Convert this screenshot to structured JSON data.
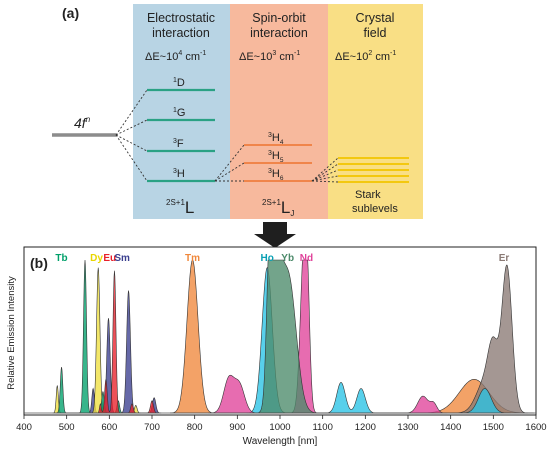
{
  "panel_a": {
    "label": "(a)",
    "config_base": "4f",
    "config_sup": "n",
    "columns": [
      {
        "title_line1": "Electrostatic",
        "title_line2": "interaction",
        "energy_base": "ΔE~10",
        "energy_exp": "4",
        "energy_unit": "cm",
        "energy_unit_exp": "-1",
        "color": "#b8d4e4"
      },
      {
        "title_line1": "Spin-orbit",
        "title_line2": "interaction",
        "energy_base": "ΔE~10",
        "energy_exp": "3",
        "energy_unit": "cm",
        "energy_unit_exp": "-1",
        "color": "#f7b99d"
      },
      {
        "title_line1": "Crystal",
        "title_line2": "field",
        "energy_base": "ΔE~10",
        "energy_exp": "2",
        "energy_unit": "cm",
        "energy_unit_exp": "-1",
        "color": "#f9df85"
      }
    ],
    "terms": [
      {
        "sup": "1",
        "letter": "D"
      },
      {
        "sup": "1",
        "letter": "G"
      },
      {
        "sup": "3",
        "letter": "F"
      },
      {
        "sup": "3",
        "letter": "H"
      }
    ],
    "term_symbol": {
      "sup": "2S+1",
      "letter": "L"
    },
    "levels": [
      {
        "sup": "3",
        "letter": "H",
        "sub": "4"
      },
      {
        "sup": "3",
        "letter": "H",
        "sub": "5"
      },
      {
        "sup": "3",
        "letter": "H",
        "sub": "6"
      }
    ],
    "level_symbol": {
      "sup": "2S+1",
      "letter": "L",
      "sub": "J"
    },
    "stark_line1": "Stark",
    "stark_line2": "sublevels",
    "colors": {
      "term_line": "#2aa184",
      "level_line": "#f0854a",
      "stark_line": "#f2c400",
      "base_line": "#8c8c8c"
    }
  },
  "panel_b": {
    "label": "(b)",
    "ylabel": "Relative Emission Intensity",
    "xlabel": "Wavelength [nm]",
    "element_labels": [
      {
        "name": "Tb",
        "color": "#00a06a",
        "x": 488
      },
      {
        "name": "Dy",
        "color": "#e8d600",
        "x": 570
      },
      {
        "name": "Eu",
        "color": "#e8202a",
        "x": 601
      },
      {
        "name": "Sm",
        "color": "#3b3f8f",
        "x": 630
      },
      {
        "name": "Tm",
        "color": "#f0883c",
        "x": 795
      },
      {
        "name": "Ho",
        "color": "#0aa0b4",
        "x": 970
      },
      {
        "name": "Yb",
        "color": "#4c8a6a",
        "x": 1018
      },
      {
        "name": "Nd",
        "color": "#e0429a",
        "x": 1062
      },
      {
        "name": "Er",
        "color": "#8a7a75",
        "x": 1525
      }
    ]
  },
  "chart_data": {
    "type": "area",
    "xlabel": "Wavelength [nm]",
    "ylabel": "Relative Emission Intensity",
    "xlim": [
      400,
      1600
    ],
    "ylim": [
      0,
      1
    ],
    "x_ticks": [
      400,
      500,
      600,
      700,
      800,
      900,
      1000,
      1100,
      1200,
      1300,
      1400,
      1500,
      1600
    ],
    "series": [
      {
        "name": "Tb",
        "color": "#00a06a",
        "peaks": [
          [
            488,
            0.3,
            3.0
          ],
          [
            543,
            1.0,
            3.5
          ],
          [
            585,
            0.14,
            3.0
          ],
          [
            621,
            0.08,
            3.0
          ]
        ]
      },
      {
        "name": "Dy",
        "color": "#f0e040",
        "peaks": [
          [
            478,
            0.18,
            2.5
          ],
          [
            574,
            0.95,
            4.0
          ],
          [
            662,
            0.05,
            3.0
          ]
        ]
      },
      {
        "name": "Eu",
        "color": "#e8202a",
        "peaks": [
          [
            579,
            0.06,
            2.0
          ],
          [
            592,
            0.22,
            3.0
          ],
          [
            612,
            0.93,
            3.5
          ],
          [
            653,
            0.06,
            3.0
          ],
          [
            700,
            0.08,
            3.5
          ]
        ]
      },
      {
        "name": "Sm",
        "color": "#3b3f8f",
        "peaks": [
          [
            562,
            0.16,
            3.0
          ],
          [
            598,
            0.62,
            4.0
          ],
          [
            645,
            0.8,
            4.5
          ],
          [
            705,
            0.1,
            4.0
          ]
        ]
      },
      {
        "name": "Tm",
        "color": "#f0883c",
        "peaks": [
          [
            795,
            1.0,
            13.0
          ],
          [
            1455,
            0.22,
            35.0
          ]
        ]
      },
      {
        "name": "Ho",
        "color": "#29c3e6",
        "peaks": [
          [
            970,
            0.95,
            12.0
          ],
          [
            1143,
            0.2,
            10.0
          ],
          [
            1190,
            0.16,
            10.0
          ],
          [
            1480,
            0.16,
            15.0
          ]
        ]
      },
      {
        "name": "Yb",
        "color": "#4c8a6a",
        "peaks": [
          [
            976,
            0.95,
            7.0
          ],
          [
            992,
            0.72,
            12.0
          ],
          [
            1020,
            0.88,
            18.0
          ]
        ]
      },
      {
        "name": "Nd",
        "color": "#e0429a",
        "peaks": [
          [
            880,
            0.22,
            12.0
          ],
          [
            905,
            0.18,
            12.0
          ],
          [
            1055,
            0.95,
            8.0
          ],
          [
            1064,
            0.6,
            6.0
          ],
          [
            1335,
            0.11,
            12.0
          ],
          [
            1360,
            0.06,
            8.0
          ]
        ]
      },
      {
        "name": "Er",
        "color": "#8a7a75",
        "peaks": [
          [
            1480,
            0.2,
            20.0
          ],
          [
            1532,
            0.95,
            12.0
          ],
          [
            1500,
            0.35,
            12.0
          ]
        ]
      }
    ]
  }
}
